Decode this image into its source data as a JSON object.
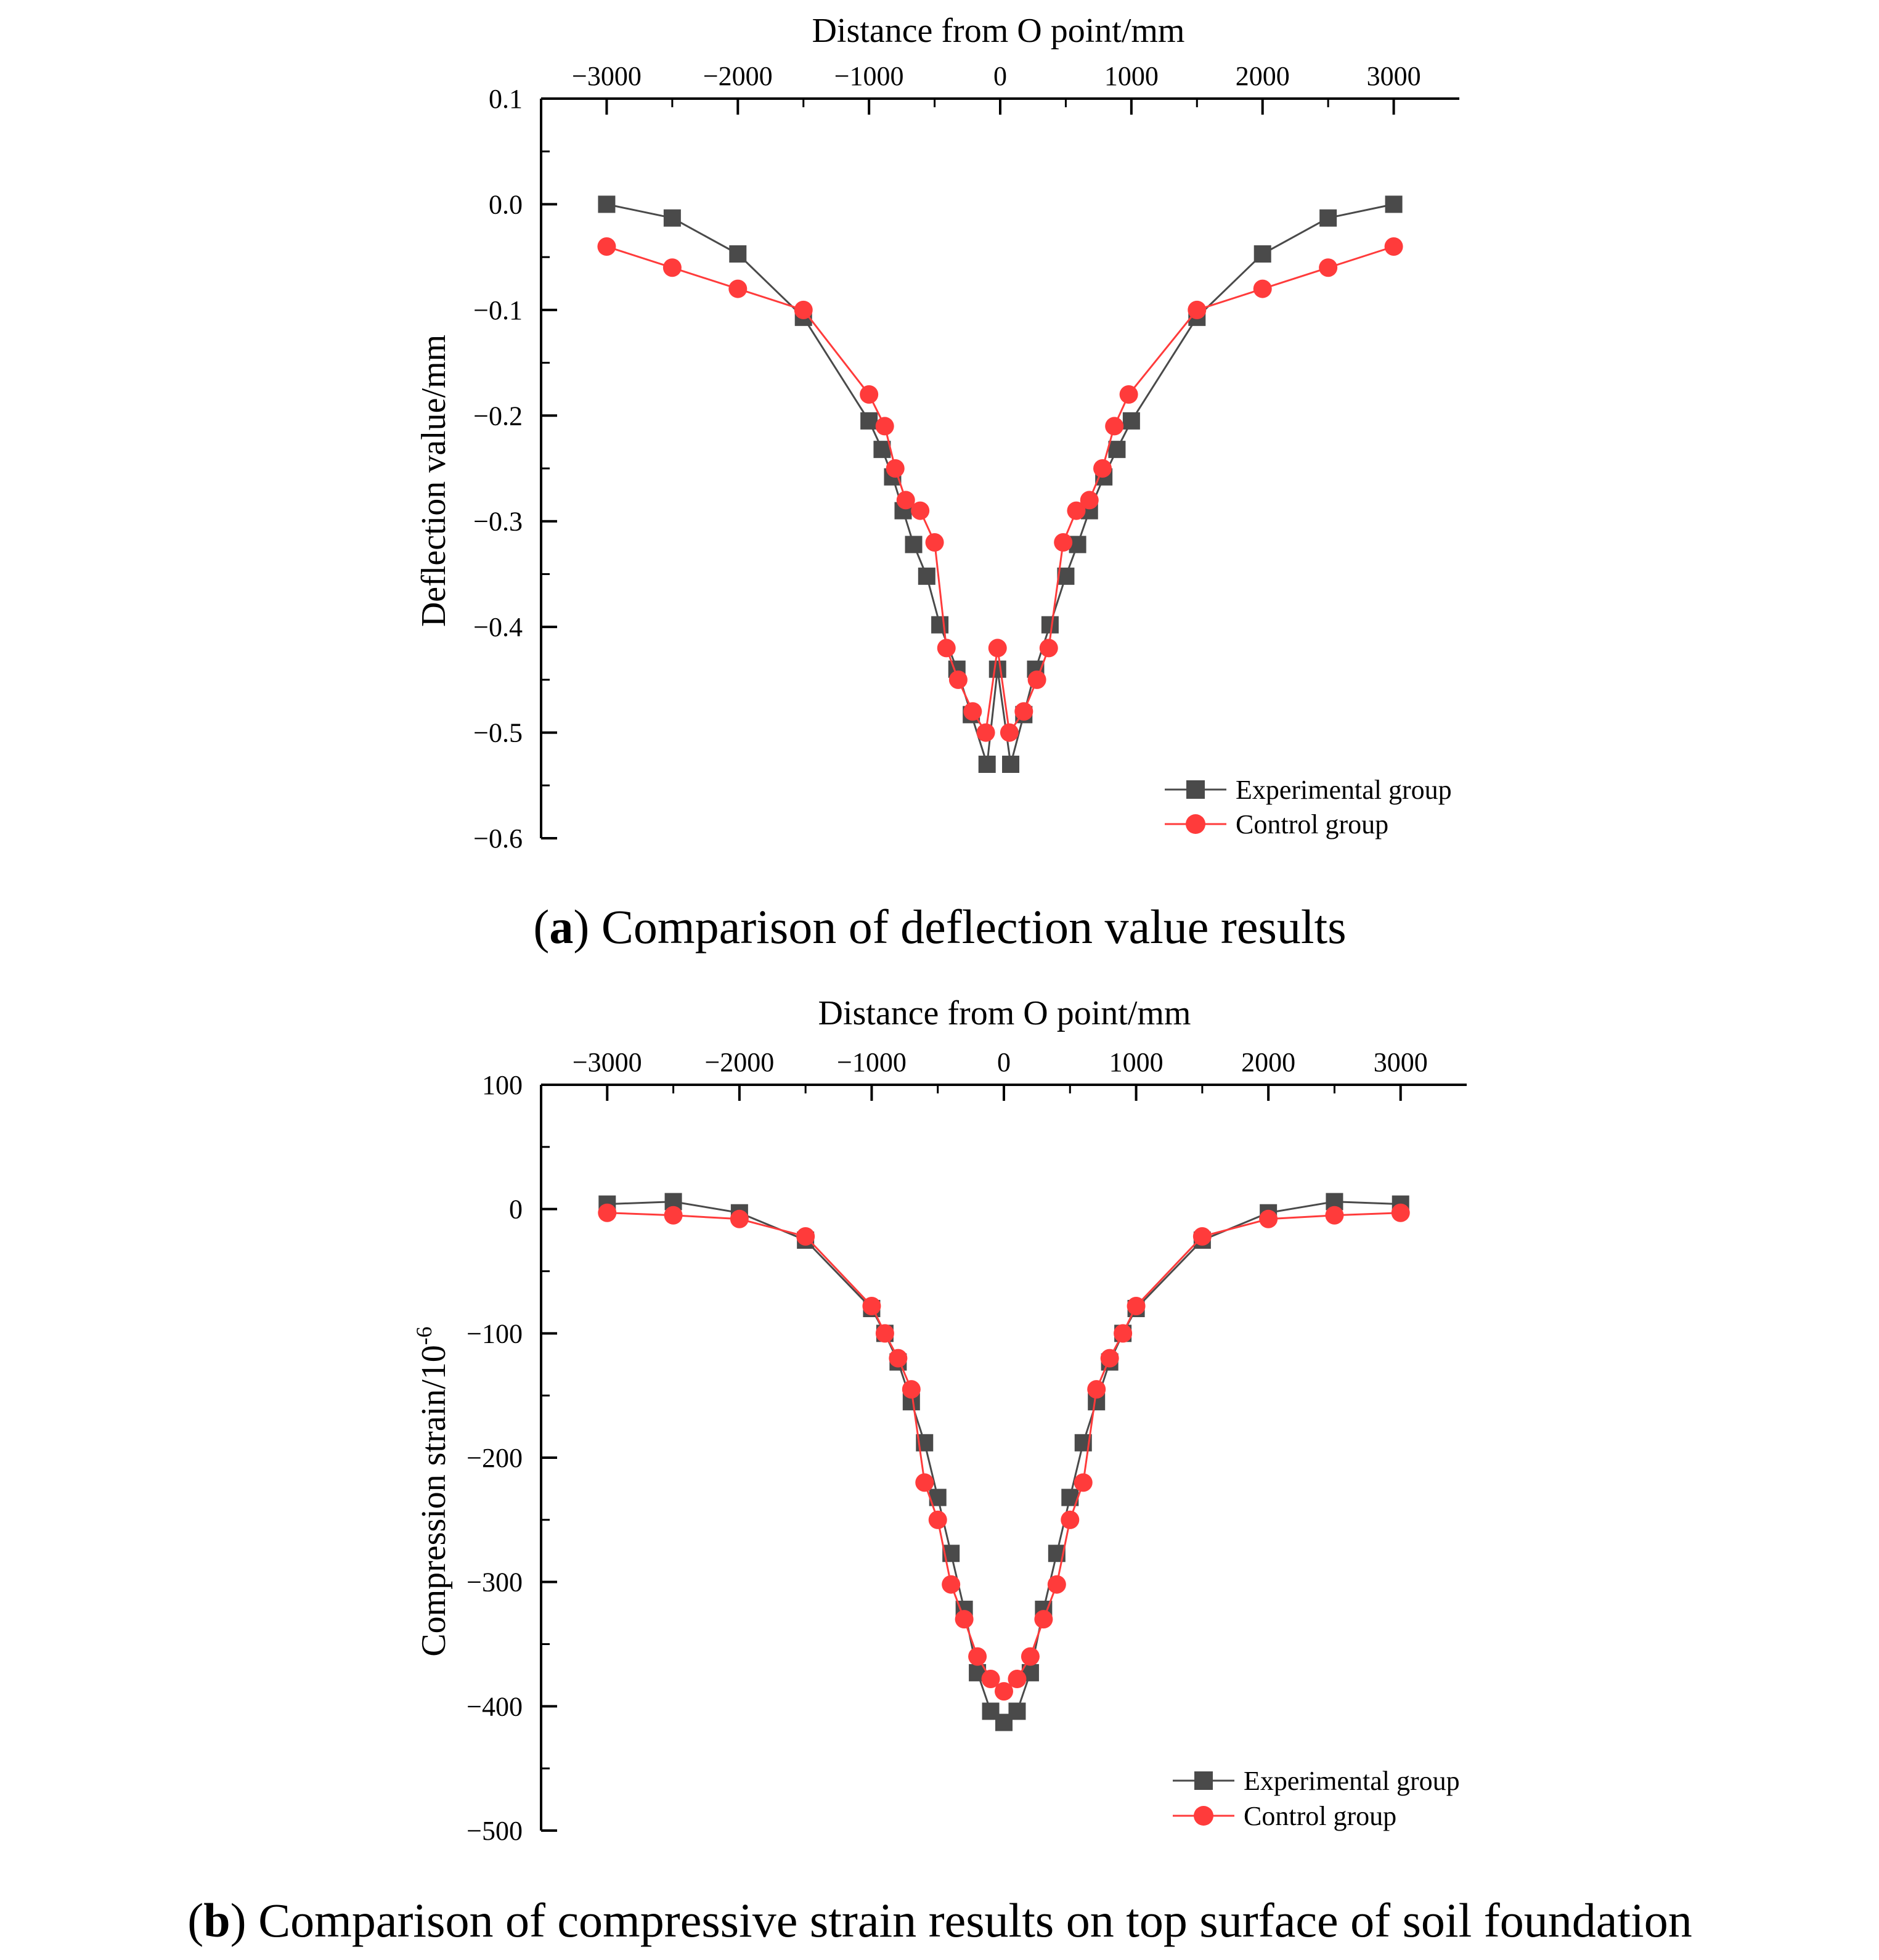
{
  "chart_data": [
    {
      "type": "line",
      "caption_letter": "a",
      "caption_open": "(",
      "caption_close": ")",
      "caption_text": " Comparison of deflection value results",
      "xlabel": "Distance from O point/mm",
      "ylabel": "Deflection value/mm",
      "xlim": [
        -3500,
        3500
      ],
      "ylim": [
        -0.6,
        0.1
      ],
      "x_ticks": [
        -3000,
        -2000,
        -1000,
        0,
        1000,
        2000,
        3000
      ],
      "x_tick_labels": [
        "−3000",
        "−2000",
        "−1000",
        "0",
        "1000",
        "2000",
        "3000"
      ],
      "y_ticks": [
        0.1,
        0.0,
        -0.1,
        -0.2,
        -0.3,
        -0.4,
        -0.5,
        -0.6
      ],
      "y_tick_labels": [
        "0.1",
        "0.0",
        "−0.1",
        "−0.2",
        "−0.3",
        "−0.4",
        "−0.5",
        "−0.6"
      ],
      "legend_position": "bottom-right",
      "series": [
        {
          "name": "Experimental group",
          "color": "#4a4a4a",
          "marker": "square",
          "x": [
            -3000,
            -2500,
            -2000,
            -1500,
            -1000,
            -900,
            -820,
            -740,
            -660,
            -560,
            -460,
            -330,
            -220,
            -100,
            -20,
            80,
            180,
            270,
            380,
            500,
            590,
            680,
            790,
            890,
            1000,
            1500,
            2000,
            2500,
            3000
          ],
          "y": [
            0.0,
            -0.013,
            -0.047,
            -0.107,
            -0.205,
            -0.232,
            -0.258,
            -0.29,
            -0.322,
            -0.352,
            -0.398,
            -0.44,
            -0.483,
            -0.53,
            -0.44,
            -0.53,
            -0.483,
            -0.44,
            -0.398,
            -0.352,
            -0.322,
            -0.29,
            -0.258,
            -0.232,
            -0.205,
            -0.107,
            -0.047,
            -0.013,
            0.0
          ]
        },
        {
          "name": "Control group",
          "color": "#ff3b3b",
          "marker": "circle",
          "x": [
            -3000,
            -2500,
            -2000,
            -1500,
            -1000,
            -880,
            -800,
            -720,
            -610,
            -500,
            -410,
            -320,
            -210,
            -110,
            -20,
            70,
            180,
            280,
            370,
            480,
            580,
            680,
            780,
            870,
            980,
            1500,
            2000,
            2500,
            3000
          ],
          "y": [
            -0.04,
            -0.06,
            -0.08,
            -0.1,
            -0.18,
            -0.21,
            -0.25,
            -0.28,
            -0.29,
            -0.32,
            -0.42,
            -0.45,
            -0.48,
            -0.5,
            -0.42,
            -0.5,
            -0.48,
            -0.45,
            -0.42,
            -0.32,
            -0.29,
            -0.28,
            -0.25,
            -0.21,
            -0.18,
            -0.1,
            -0.08,
            -0.06,
            -0.04
          ]
        }
      ]
    },
    {
      "type": "line",
      "caption_letter": "b",
      "caption_open": "(",
      "caption_close": ")",
      "caption_text": " Comparison of compressive strain results on top surface of soil foundation",
      "xlabel": "Distance from O point/mm",
      "ylabel": "Compression strain/10",
      "ylabel_superscript": "-6",
      "xlim": [
        -3500,
        3500
      ],
      "ylim": [
        -500,
        100
      ],
      "x_ticks": [
        -3000,
        -2000,
        -1000,
        0,
        1000,
        2000,
        3000
      ],
      "x_tick_labels": [
        "−3000",
        "−2000",
        "−1000",
        "0",
        "1000",
        "2000",
        "3000"
      ],
      "y_ticks": [
        100,
        0,
        -100,
        -200,
        -300,
        -400,
        -500
      ],
      "y_tick_labels": [
        "100",
        "0",
        "−100",
        "−200",
        "−300",
        "−400",
        "−500"
      ],
      "legend_position": "bottom-right",
      "series": [
        {
          "name": "Experimental group",
          "color": "#4a4a4a",
          "marker": "square",
          "x": [
            -3000,
            -2500,
            -2000,
            -1500,
            -1000,
            -900,
            -800,
            -700,
            -600,
            -500,
            -400,
            -300,
            -200,
            -100,
            0,
            100,
            200,
            300,
            400,
            500,
            600,
            700,
            800,
            900,
            1000,
            1500,
            2000,
            2500,
            3000
          ],
          "y": [
            4,
            6,
            -3,
            -25,
            -80,
            -100,
            -123,
            -155,
            -188,
            -232,
            -277,
            -322,
            -373,
            -404,
            -413,
            -404,
            -373,
            -322,
            -277,
            -232,
            -188,
            -155,
            -123,
            -100,
            -80,
            -25,
            -3,
            6,
            4
          ],
          "point_names": []
        },
        {
          "name": "Control group",
          "color": "#ff3b3b",
          "marker": "circle",
          "x": [
            -3000,
            -2500,
            -2000,
            -1500,
            -1000,
            -900,
            -800,
            -700,
            -600,
            -500,
            -400,
            -300,
            -200,
            -100,
            0,
            100,
            200,
            300,
            400,
            500,
            600,
            700,
            800,
            900,
            1000,
            1500,
            2000,
            2500,
            3000
          ],
          "y": [
            -3,
            -5,
            -8,
            -22,
            -78,
            -100,
            -120,
            -145,
            -220,
            -250,
            -302,
            -330,
            -360,
            -378,
            -388,
            -378,
            -360,
            -330,
            -302,
            -250,
            -220,
            -145,
            -120,
            -100,
            -78,
            -22,
            -8,
            -5,
            -3
          ]
        }
      ]
    }
  ]
}
